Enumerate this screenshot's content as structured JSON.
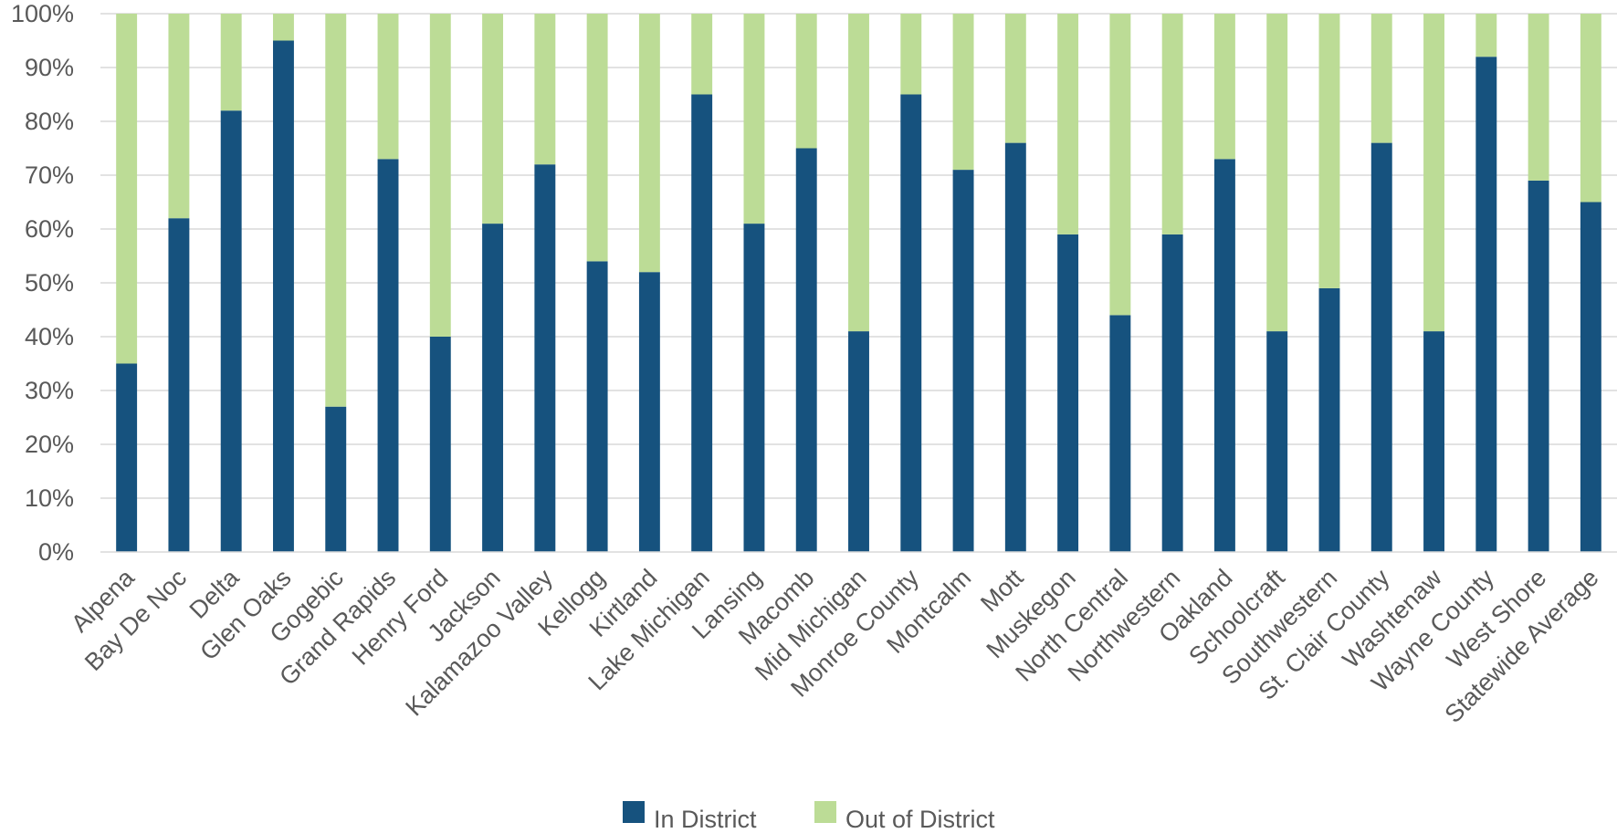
{
  "chart_data": {
    "type": "bar",
    "stacked": true,
    "percent_stacked": true,
    "categories": [
      "Alpena",
      "Bay De Noc",
      "Delta",
      "Glen Oaks",
      "Gogebic",
      "Grand Rapids",
      "Henry Ford",
      "Jackson",
      "Kalamazoo Valley",
      "Kellogg",
      "Kirtland",
      "Lake Michigan",
      "Lansing",
      "Macomb",
      "Mid Michigan",
      "Monroe County",
      "Montcalm",
      "Mott",
      "Muskegon",
      "North Central",
      "Northwestern",
      "Oakland",
      "Schoolcraft",
      "Southwestern",
      "St. Clair County",
      "Washtenaw",
      "Wayne County",
      "West Shore",
      "Statewide Average"
    ],
    "series": [
      {
        "name": "In District",
        "color": "#16527e",
        "values": [
          35,
          62,
          82,
          95,
          27,
          73,
          40,
          61,
          72,
          54,
          52,
          85,
          61,
          75,
          41,
          85,
          71,
          76,
          59,
          44,
          59,
          73,
          41,
          49,
          76,
          41,
          92,
          69,
          65
        ]
      },
      {
        "name": "Out of District",
        "color": "#bcdc96",
        "values": [
          65,
          38,
          18,
          5,
          73,
          27,
          60,
          39,
          28,
          46,
          48,
          15,
          39,
          25,
          59,
          15,
          29,
          24,
          41,
          56,
          41,
          27,
          59,
          51,
          24,
          59,
          8,
          31,
          35
        ]
      }
    ],
    "yticks": [
      "0%",
      "10%",
      "20%",
      "30%",
      "40%",
      "50%",
      "60%",
      "70%",
      "80%",
      "90%",
      "100%"
    ],
    "ylim": [
      0,
      100
    ],
    "grid": true,
    "legend_position": "bottom"
  }
}
